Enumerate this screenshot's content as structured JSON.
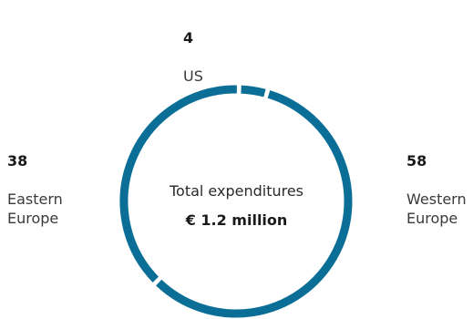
{
  "chart_data": {
    "type": "pie",
    "variant": "donut",
    "categories": [
      "US",
      "Western Europe",
      "Eastern Europe"
    ],
    "values": [
      4,
      58,
      38
    ],
    "value_labels": [
      "4",
      "58",
      "38"
    ],
    "center": {
      "caption": "Total expenditures",
      "total": "€ 1.2 million"
    },
    "colors": {
      "ring": "#0a6e96",
      "gap": "#ffffff"
    }
  }
}
